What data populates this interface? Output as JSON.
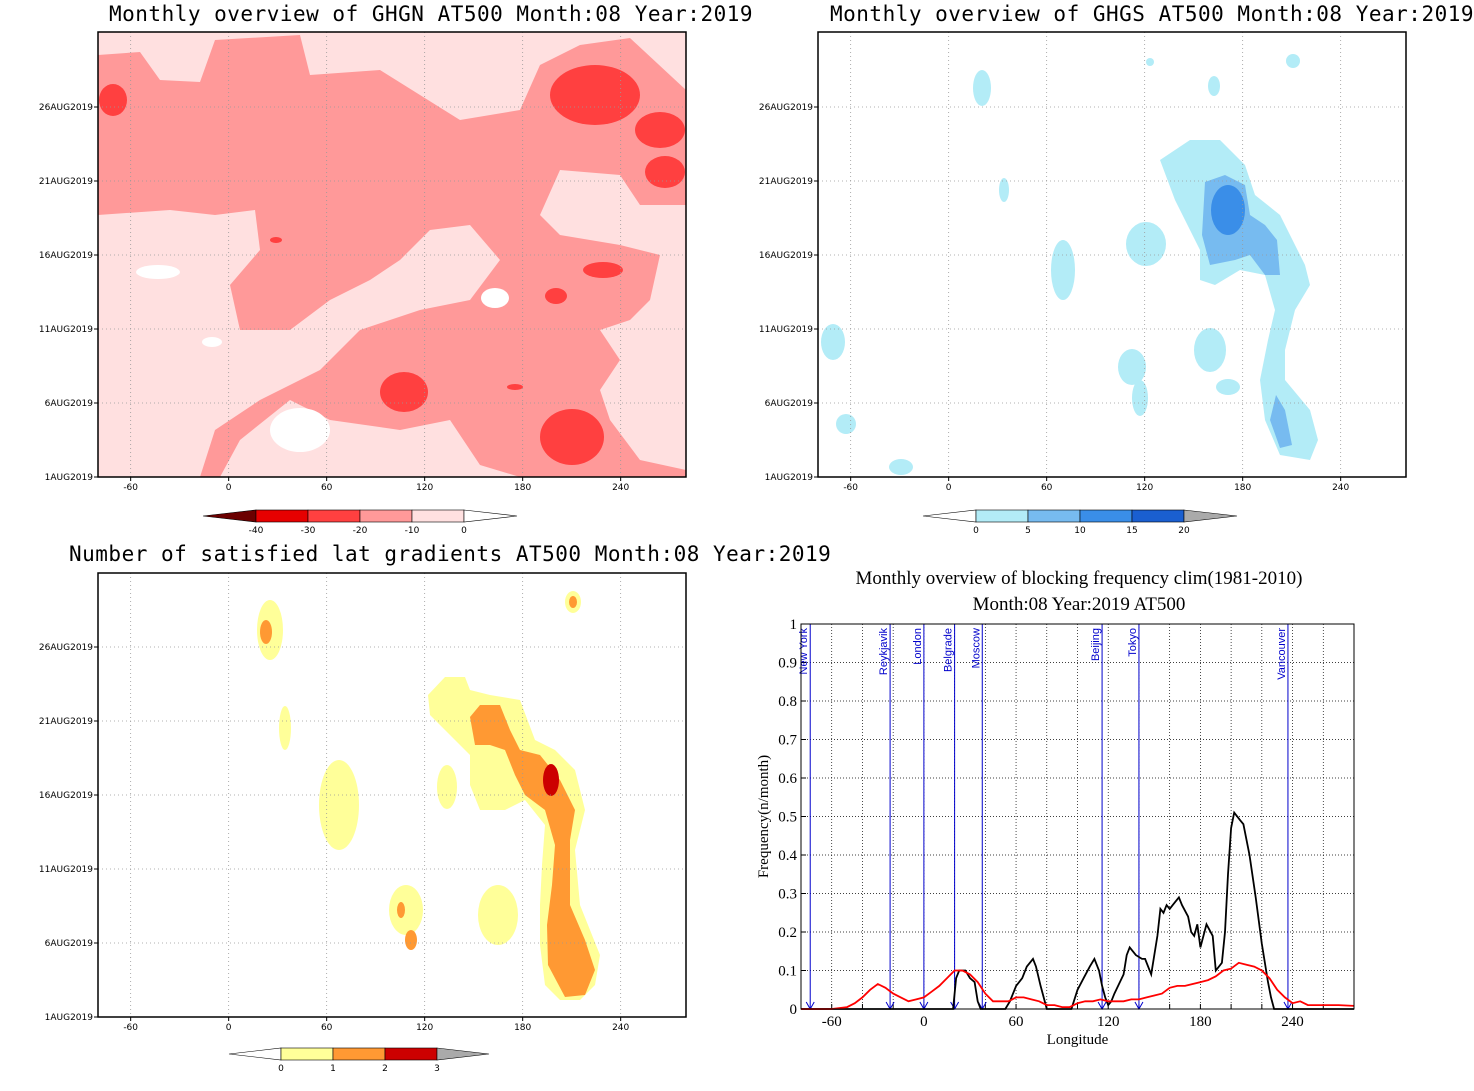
{
  "panels": {
    "ghgn": {
      "title": "Monthly overview of GHGN AT500 Month:08 Year:2019"
    },
    "ghgs": {
      "title": "Monthly overview of GHGS AT500 Month:08 Year:2019"
    },
    "lat": {
      "title": "Number of satisfied lat gradients AT500 Month:08 Year:2019"
    },
    "freq": {
      "title_line1": "Monthly overview of blocking frequency clim(1981-2010)",
      "title_line2": "Month:08 Year:2019  AT500"
    }
  },
  "chart_data": [
    {
      "type": "heatmap",
      "title": "Monthly overview of GHGN AT500 Month:08 Year:2019",
      "x_ticks": [
        "-60",
        "0",
        "60",
        "120",
        "180",
        "240"
      ],
      "y_ticks": [
        "1AUG2019",
        "6AUG2019",
        "11AUG2019",
        "16AUG2019",
        "21AUG2019",
        "26AUG2019"
      ],
      "xlim": [
        -80,
        280
      ],
      "colorbar": {
        "labels": [
          "-40",
          "-30",
          "-20",
          "-10",
          "0"
        ],
        "colors": [
          "#6b0000",
          "#e60000",
          "#ff4040",
          "#ff9999",
          "#ffe0e0",
          "#ffffff"
        ]
      },
      "grid": true
    },
    {
      "type": "heatmap",
      "title": "Monthly overview of GHGS AT500 Month:08 Year:2019",
      "x_ticks": [
        "-60",
        "0",
        "60",
        "120",
        "180",
        "240"
      ],
      "y_ticks": [
        "1AUG2019",
        "6AUG2019",
        "11AUG2019",
        "16AUG2019",
        "21AUG2019",
        "26AUG2019"
      ],
      "xlim": [
        -80,
        280
      ],
      "colorbar": {
        "labels": [
          "0",
          "5",
          "10",
          "15",
          "20"
        ],
        "colors": [
          "#ffffff",
          "#b3ecf7",
          "#77bbf0",
          "#3a8ee8",
          "#1a5fd0",
          "#aaaaaa"
        ]
      },
      "grid": true
    },
    {
      "type": "heatmap",
      "title": "Number of satisfied lat gradients AT500 Month:08 Year:2019",
      "x_ticks": [
        "-60",
        "0",
        "60",
        "120",
        "180",
        "240"
      ],
      "y_ticks": [
        "1AUG2019",
        "6AUG2019",
        "11AUG2019",
        "16AUG2019",
        "21AUG2019",
        "26AUG2019"
      ],
      "xlim": [
        -80,
        280
      ],
      "colorbar": {
        "labels": [
          "0",
          "1",
          "2",
          "3"
        ],
        "colors": [
          "#ffffff",
          "#ffff99",
          "#ff9933",
          "#cc0000",
          "#aaaaaa"
        ]
      },
      "grid": true
    },
    {
      "type": "line",
      "title": "Monthly overview of blocking frequency clim(1981-2010)",
      "subtitle": "Month:08 Year:2019  AT500",
      "xlabel": "Longitude",
      "ylabel": "Frequency(n/month)",
      "xlim": [
        -80,
        280
      ],
      "ylim": [
        0,
        1
      ],
      "x_ticks": [
        "-60",
        "0",
        "60",
        "120",
        "180",
        "240"
      ],
      "y_ticks": [
        "0",
        "0.1",
        "0.2",
        "0.3",
        "0.4",
        "0.5",
        "0.6",
        "0.7",
        "0.8",
        "0.9",
        "1"
      ],
      "grid": true,
      "cities": [
        {
          "name": "New York",
          "lon": -74
        },
        {
          "name": "Reykjavik",
          "lon": -22
        },
        {
          "name": "London",
          "lon": 0
        },
        {
          "name": "Belgrade",
          "lon": 20
        },
        {
          "name": "Moscow",
          "lon": 38
        },
        {
          "name": "Beijing",
          "lon": 116
        },
        {
          "name": "Tokyo",
          "lon": 140
        },
        {
          "name": "Vancouver",
          "lon": 237
        }
      ],
      "series": [
        {
          "color": "#000000",
          "x": [
            -80,
            19,
            21,
            23,
            27,
            30,
            33,
            35,
            37,
            53,
            56,
            60,
            64,
            67,
            71,
            73,
            76,
            80,
            96,
            100,
            104,
            108,
            111,
            114,
            116,
            118,
            120,
            122,
            124,
            130,
            132,
            134,
            138,
            142,
            144,
            148,
            150,
            152,
            154,
            156,
            158,
            160,
            162,
            164,
            166,
            168,
            172,
            174,
            176,
            178,
            180,
            184,
            188,
            190,
            194,
            196,
            198,
            200,
            202,
            206,
            208,
            212,
            216,
            220,
            224,
            226,
            228,
            232,
            280
          ],
          "y": [
            0,
            0,
            0.08,
            0.1,
            0.1,
            0.08,
            0.07,
            0.02,
            0,
            0,
            0.02,
            0.06,
            0.08,
            0.11,
            0.13,
            0.11,
            0.06,
            0,
            0,
            0.05,
            0.08,
            0.11,
            0.13,
            0.1,
            0.06,
            0.03,
            0.01,
            0.02,
            0.04,
            0.09,
            0.14,
            0.16,
            0.14,
            0.13,
            0.13,
            0.09,
            0.14,
            0.19,
            0.26,
            0.25,
            0.27,
            0.26,
            0.27,
            0.28,
            0.29,
            0.27,
            0.24,
            0.2,
            0.19,
            0.22,
            0.16,
            0.22,
            0.19,
            0.1,
            0.12,
            0.2,
            0.35,
            0.47,
            0.51,
            0.49,
            0.48,
            0.4,
            0.29,
            0.17,
            0.07,
            0.03,
            0,
            0,
            0
          ]
        },
        {
          "color": "#ff0000",
          "x": [
            -80,
            -70,
            -60,
            -50,
            -45,
            -40,
            -35,
            -30,
            -25,
            -20,
            -15,
            -10,
            -5,
            0,
            5,
            10,
            15,
            20,
            25,
            30,
            35,
            40,
            45,
            50,
            55,
            60,
            65,
            70,
            75,
            80,
            85,
            90,
            95,
            100,
            105,
            110,
            115,
            120,
            125,
            130,
            135,
            140,
            145,
            150,
            155,
            160,
            165,
            170,
            175,
            180,
            185,
            190,
            195,
            200,
            205,
            210,
            215,
            220,
            225,
            230,
            235,
            240,
            245,
            250,
            260,
            270,
            280
          ],
          "y": [
            0,
            0,
            0,
            0.005,
            0.015,
            0.03,
            0.05,
            0.065,
            0.055,
            0.04,
            0.03,
            0.02,
            0.025,
            0.03,
            0.045,
            0.06,
            0.08,
            0.1,
            0.1,
            0.09,
            0.07,
            0.04,
            0.02,
            0.02,
            0.02,
            0.03,
            0.03,
            0.025,
            0.02,
            0.01,
            0.01,
            0.005,
            0.005,
            0.015,
            0.02,
            0.02,
            0.025,
            0.02,
            0.02,
            0.02,
            0.025,
            0.025,
            0.03,
            0.035,
            0.04,
            0.055,
            0.06,
            0.06,
            0.065,
            0.07,
            0.075,
            0.085,
            0.1,
            0.105,
            0.12,
            0.115,
            0.11,
            0.1,
            0.08,
            0.05,
            0.03,
            0.015,
            0.02,
            0.01,
            0.01,
            0.01,
            0.008
          ]
        }
      ]
    }
  ]
}
